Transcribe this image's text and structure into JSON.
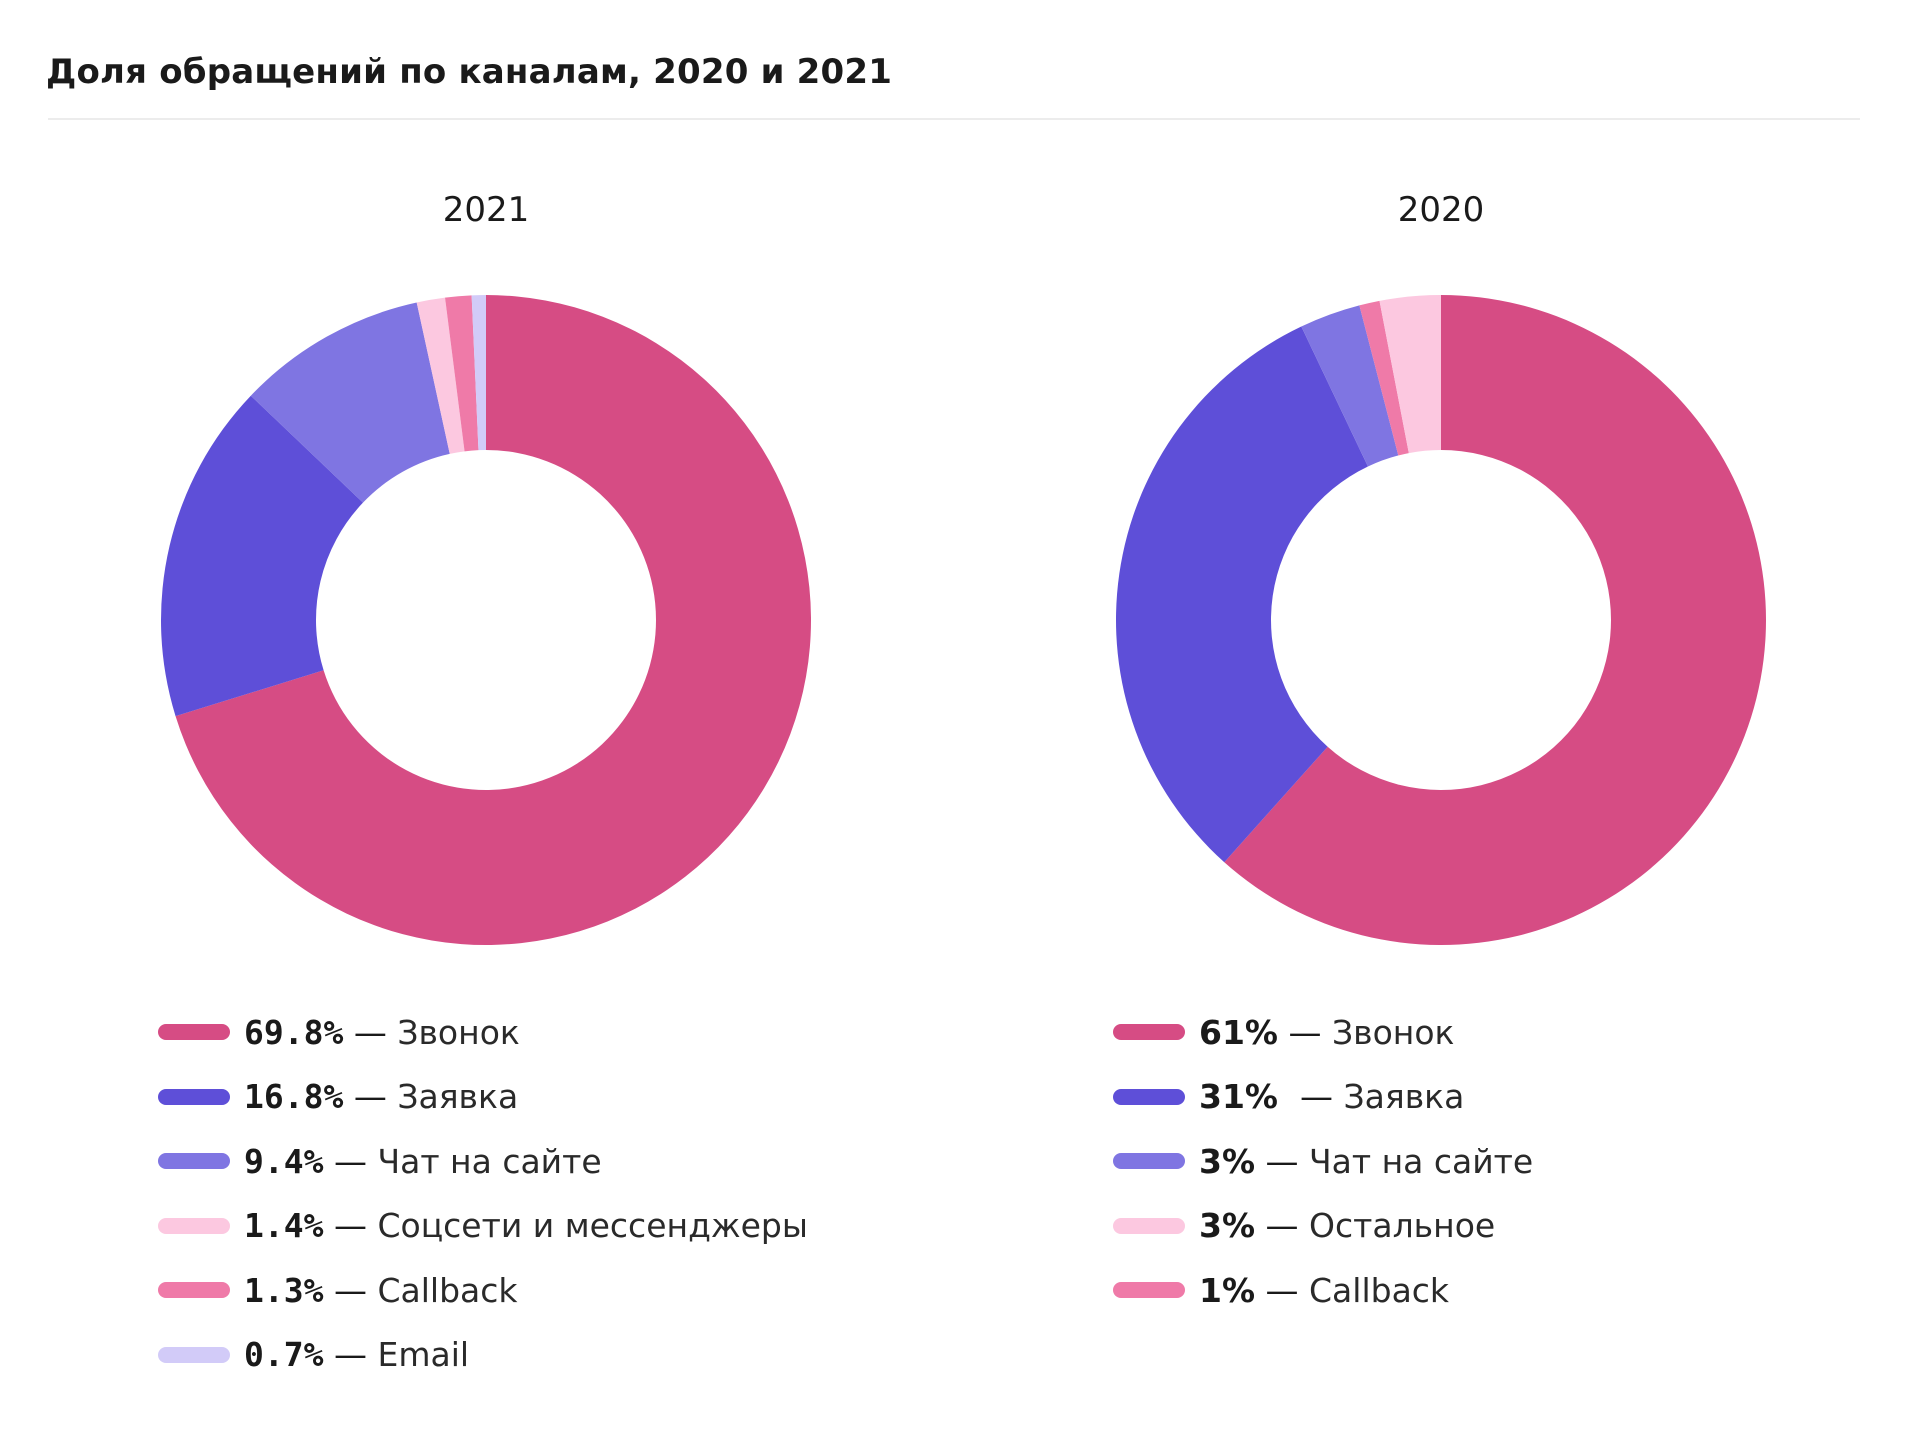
{
  "title": "Доля обращений по каналам, 2020 и 2021",
  "chart_data": [
    {
      "type": "pie",
      "title": "2021",
      "series": [
        {
          "pct_label": "69.8%",
          "name": "Звонок",
          "value": 69.8,
          "color": "#d64c84"
        },
        {
          "pct_label": "16.8%",
          "name": "Заявка",
          "value": 16.8,
          "color": "#5e4fd8"
        },
        {
          "pct_label": "9.4%",
          "name": "Чат на сайте",
          "value": 9.4,
          "color": "#7f75e2"
        },
        {
          "pct_label": "1.4%",
          "name": "Соцсети и мессенджеры",
          "value": 1.4,
          "color": "#fcc8e0"
        },
        {
          "pct_label": "1.3%",
          "name": "Callback",
          "value": 1.3,
          "color": "#ef7aa8"
        },
        {
          "pct_label": "0.7%",
          "name": "Email",
          "value": 0.7,
          "color": "#d2cbf8"
        }
      ]
    },
    {
      "type": "pie",
      "title": "2020",
      "series": [
        {
          "pct_label": "61%",
          "name": "Звонок",
          "value": 61,
          "color": "#d64c84"
        },
        {
          "pct_label": "31% ",
          "name": "Заявка",
          "value": 31,
          "color": "#5e4fd8"
        },
        {
          "pct_label": "3%",
          "name": "Чат на сайте",
          "value": 3,
          "color": "#7f75e2"
        },
        {
          "pct_label": "3%",
          "name": "Остальное",
          "value": 3,
          "color": "#fcc8e0"
        },
        {
          "pct_label": "1%",
          "name": "Callback",
          "value": 1,
          "color": "#ef7aa8"
        }
      ],
      "slice_order": [
        "Звонок",
        "Заявка",
        "Чат на сайте",
        "Callback",
        "Остальное"
      ]
    }
  ]
}
